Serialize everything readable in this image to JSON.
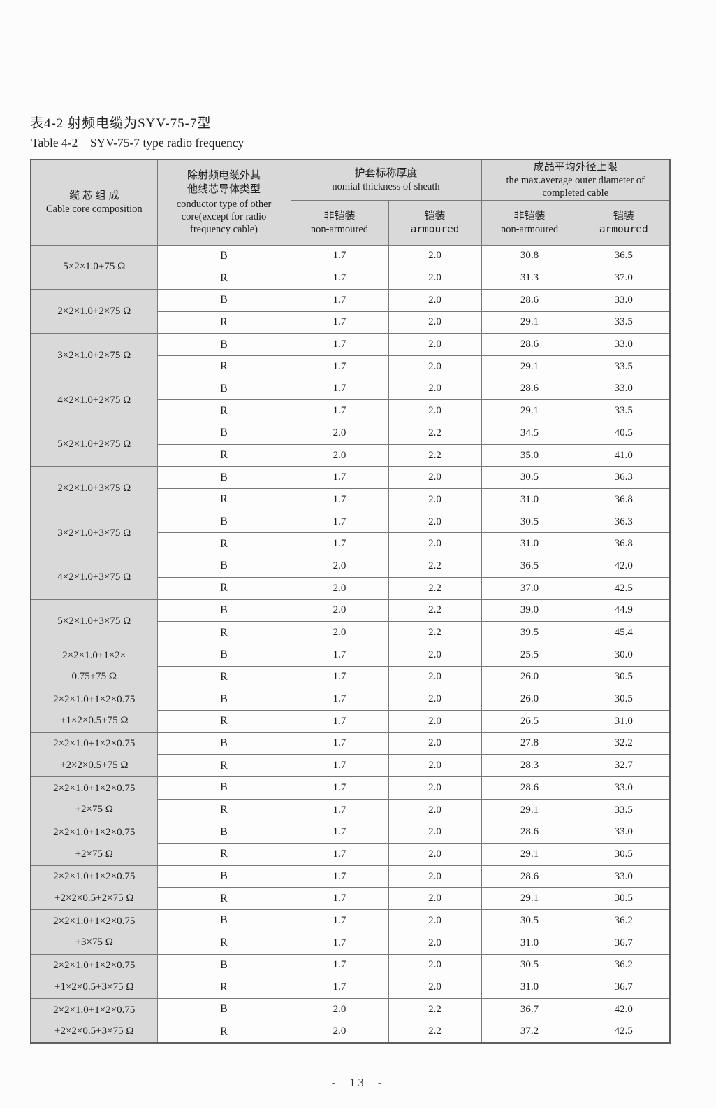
{
  "titles": {
    "zh": "表4-2 射频电缆为SYV-75-7型",
    "en": "Table 4-2    SYV-75-7 type radio frequency"
  },
  "colors": {
    "header_bg": "#d9d9d9",
    "cell_bg": "#fdfdfd",
    "border": "#787878",
    "page_bg": "#fcfcfc"
  },
  "table": {
    "headers": {
      "col1_zh": "缆 芯 组 成",
      "col1_en": "Cable core composition",
      "col2_zh_line1": "除射频电缆外其",
      "col2_zh_line2": "他线芯导体类型",
      "col2_en": "conductor type of other core(except for radio frequency cable)",
      "sheath_zh": "护套标称厚度",
      "sheath_en": "nomial thickness of sheath",
      "diameter_zh": "成品平均外径上限",
      "diameter_en": "the max.average outer diameter of completed cable",
      "non_armoured_zh": "非铠装",
      "non_armoured_en": "non-armoured",
      "armoured_zh": "铠装",
      "armoured_en": "armoured"
    },
    "groups": [
      {
        "label_lines": [
          "5×2×1.0+75 Ω"
        ],
        "rows": [
          {
            "type": "B",
            "values": [
              "1.7",
              "2.0",
              "30.8",
              "36.5"
            ]
          },
          {
            "type": "R",
            "values": [
              "1.7",
              "2.0",
              "31.3",
              "37.0"
            ]
          }
        ]
      },
      {
        "label_lines": [
          "2×2×1.0+2×75 Ω"
        ],
        "rows": [
          {
            "type": "B",
            "values": [
              "1.7",
              "2.0",
              "28.6",
              "33.0"
            ]
          },
          {
            "type": "R",
            "values": [
              "1.7",
              "2.0",
              "29.1",
              "33.5"
            ]
          }
        ]
      },
      {
        "label_lines": [
          "3×2×1.0+2×75 Ω"
        ],
        "rows": [
          {
            "type": "B",
            "values": [
              "1.7",
              "2.0",
              "28.6",
              "33.0"
            ]
          },
          {
            "type": "R",
            "values": [
              "1.7",
              "2.0",
              "29.1",
              "33.5"
            ]
          }
        ]
      },
      {
        "label_lines": [
          "4×2×1.0+2×75 Ω"
        ],
        "rows": [
          {
            "type": "B",
            "values": [
              "1.7",
              "2.0",
              "28.6",
              "33.0"
            ]
          },
          {
            "type": "R",
            "values": [
              "1.7",
              "2.0",
              "29.1",
              "33.5"
            ]
          }
        ]
      },
      {
        "label_lines": [
          "5×2×1.0+2×75 Ω"
        ],
        "rows": [
          {
            "type": "B",
            "values": [
              "2.0",
              "2.2",
              "34.5",
              "40.5"
            ]
          },
          {
            "type": "R",
            "values": [
              "2.0",
              "2.2",
              "35.0",
              "41.0"
            ]
          }
        ]
      },
      {
        "label_lines": [
          "2×2×1.0+3×75 Ω"
        ],
        "rows": [
          {
            "type": "B",
            "values": [
              "1.7",
              "2.0",
              "30.5",
              "36.3"
            ]
          },
          {
            "type": "R",
            "values": [
              "1.7",
              "2.0",
              "31.0",
              "36.8"
            ]
          }
        ]
      },
      {
        "label_lines": [
          "3×2×1.0+3×75 Ω"
        ],
        "rows": [
          {
            "type": "B",
            "values": [
              "1.7",
              "2.0",
              "30.5",
              "36.3"
            ]
          },
          {
            "type": "R",
            "values": [
              "1.7",
              "2.0",
              "31.0",
              "36.8"
            ]
          }
        ]
      },
      {
        "label_lines": [
          "4×2×1.0+3×75 Ω"
        ],
        "rows": [
          {
            "type": "B",
            "values": [
              "2.0",
              "2.2",
              "36.5",
              "42.0"
            ]
          },
          {
            "type": "R",
            "values": [
              "2.0",
              "2.2",
              "37.0",
              "42.5"
            ]
          }
        ]
      },
      {
        "label_lines": [
          "5×2×1.0+3×75 Ω"
        ],
        "rows": [
          {
            "type": "B",
            "values": [
              "2.0",
              "2.2",
              "39.0",
              "44.9"
            ]
          },
          {
            "type": "R",
            "values": [
              "2.0",
              "2.2",
              "39.5",
              "45.4"
            ]
          }
        ]
      },
      {
        "label_lines": [
          "2×2×1.0+1×2×",
          "0.75+75 Ω"
        ],
        "rows": [
          {
            "type": "B",
            "values": [
              "1.7",
              "2.0",
              "25.5",
              "30.0"
            ]
          },
          {
            "type": "R",
            "values": [
              "1.7",
              "2.0",
              "26.0",
              "30.5"
            ]
          }
        ]
      },
      {
        "label_lines": [
          "2×2×1.0+1×2×0.75",
          "+1×2×0.5+75 Ω"
        ],
        "rows": [
          {
            "type": "B",
            "values": [
              "1.7",
              "2.0",
              "26.0",
              "30.5"
            ]
          },
          {
            "type": "R",
            "values": [
              "1.7",
              "2.0",
              "26.5",
              "31.0"
            ]
          }
        ]
      },
      {
        "label_lines": [
          "2×2×1.0+1×2×0.75",
          "+2×2×0.5+75 Ω"
        ],
        "rows": [
          {
            "type": "B",
            "values": [
              "1.7",
              "2.0",
              "27.8",
              "32.2"
            ]
          },
          {
            "type": "R",
            "values": [
              "1.7",
              "2.0",
              "28.3",
              "32.7"
            ]
          }
        ]
      },
      {
        "label_lines": [
          "2×2×1.0+1×2×0.75",
          "+2×75 Ω"
        ],
        "rows": [
          {
            "type": "B",
            "values": [
              "1.7",
              "2.0",
              "28.6",
              "33.0"
            ]
          },
          {
            "type": "R",
            "values": [
              "1.7",
              "2.0",
              "29.1",
              "33.5"
            ]
          }
        ]
      },
      {
        "label_lines": [
          "2×2×1.0+1×2×0.75",
          "+2×75 Ω"
        ],
        "rows": [
          {
            "type": "B",
            "values": [
              "1.7",
              "2.0",
              "28.6",
              "33.0"
            ]
          },
          {
            "type": "R",
            "values": [
              "1.7",
              "2.0",
              "29.1",
              "30.5"
            ]
          }
        ]
      },
      {
        "label_lines": [
          "2×2×1.0+1×2×0.75",
          "+2×2×0.5+2×75 Ω"
        ],
        "rows": [
          {
            "type": "B",
            "values": [
              "1.7",
              "2.0",
              "28.6",
              "33.0"
            ]
          },
          {
            "type": "R",
            "values": [
              "1.7",
              "2.0",
              "29.1",
              "30.5"
            ]
          }
        ]
      },
      {
        "label_lines": [
          "2×2×1.0+1×2×0.75",
          "+3×75 Ω"
        ],
        "rows": [
          {
            "type": "B",
            "values": [
              "1.7",
              "2.0",
              "30.5",
              "36.2"
            ]
          },
          {
            "type": "R",
            "values": [
              "1.7",
              "2.0",
              "31.0",
              "36.7"
            ]
          }
        ]
      },
      {
        "label_lines": [
          "2×2×1.0+1×2×0.75",
          "+1×2×0.5+3×75 Ω"
        ],
        "rows": [
          {
            "type": "B",
            "values": [
              "1.7",
              "2.0",
              "30.5",
              "36.2"
            ]
          },
          {
            "type": "R",
            "values": [
              "1.7",
              "2.0",
              "31.0",
              "36.7"
            ]
          }
        ]
      },
      {
        "label_lines": [
          "2×2×1.0+1×2×0.75",
          "+2×2×0.5+3×75 Ω"
        ],
        "rows": [
          {
            "type": "B",
            "values": [
              "2.0",
              "2.2",
              "36.7",
              "42.0"
            ]
          },
          {
            "type": "R",
            "values": [
              "2.0",
              "2.2",
              "37.2",
              "42.5"
            ]
          }
        ]
      }
    ]
  },
  "footer": {
    "page_number": "- 13 -"
  }
}
